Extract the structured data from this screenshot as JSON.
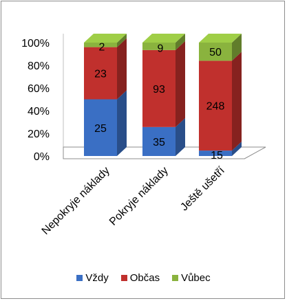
{
  "chart_data": {
    "type": "bar",
    "stacked": "percent",
    "style": "3d-stacked-column",
    "categories": [
      "Nepokryje náklady",
      "Pokryje náklady",
      "Ještě ušetří"
    ],
    "series": [
      {
        "name": "Vždy",
        "color": "#3a6fc4",
        "values": [
          25,
          35,
          15
        ]
      },
      {
        "name": "Občas",
        "color": "#c0302d",
        "values": [
          23,
          93,
          248
        ]
      },
      {
        "name": "Vůbec",
        "color": "#8ab33e",
        "values": [
          2,
          9,
          50
        ]
      }
    ],
    "yticks": [
      "0%",
      "20%",
      "40%",
      "60%",
      "80%",
      "100%"
    ],
    "ylim": [
      0,
      100
    ],
    "legend_position": "bottom",
    "grid": false
  }
}
